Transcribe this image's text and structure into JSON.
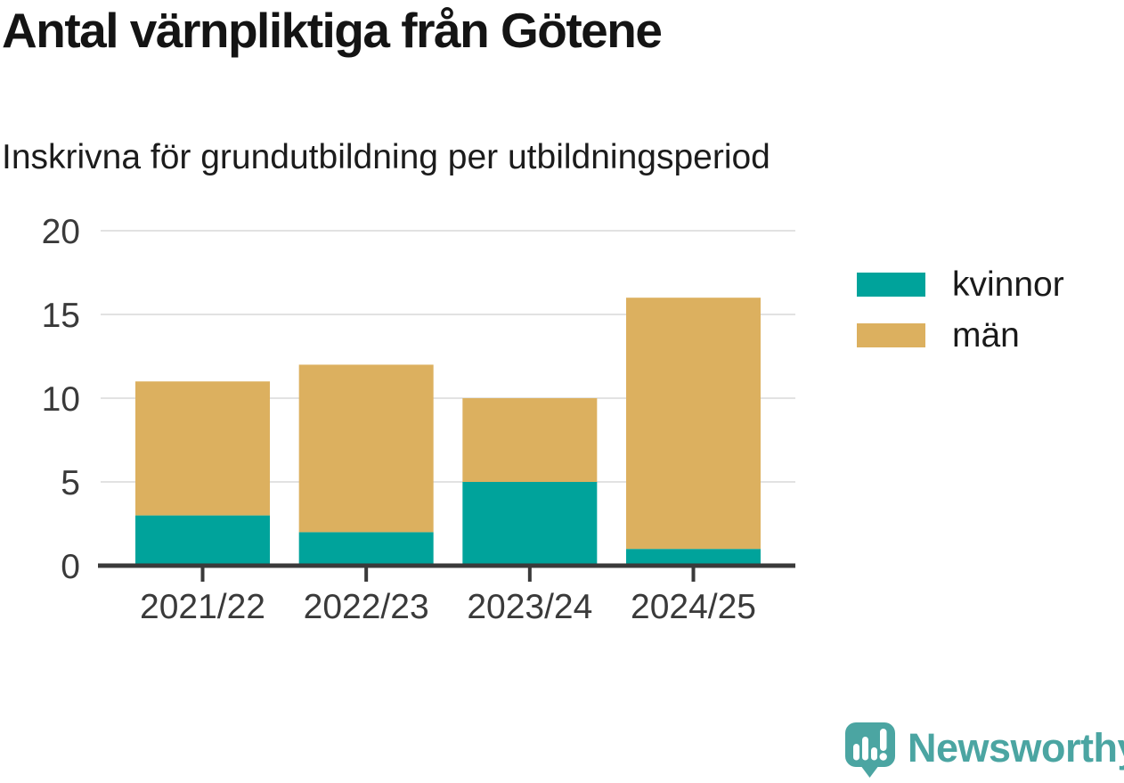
{
  "chart_data": {
    "type": "bar",
    "stacked": true,
    "title": "Antal värnpliktiga från Götene",
    "subtitle": "Inskrivna för grundutbildning per utbildningsperiod",
    "categories": [
      "2021/22",
      "2022/23",
      "2023/24",
      "2024/25"
    ],
    "series": [
      {
        "name": "kvinnor",
        "color": "#00a39b",
        "values": [
          3,
          2,
          5,
          1
        ]
      },
      {
        "name": "män",
        "color": "#dcb05f",
        "values": [
          8,
          10,
          5,
          15
        ]
      }
    ],
    "xlabel": "",
    "ylabel": "",
    "ylim": [
      0,
      20
    ],
    "yticks": [
      0,
      5,
      10,
      15,
      20
    ],
    "grid": true,
    "grid_color": "#e2e2e2",
    "axis_color": "#3a3a3a",
    "tick_label_color": "#3a3a3a",
    "legend_position": "right"
  },
  "footer": {
    "brand": "Newsworthy",
    "brand_color": "#4ba5a2"
  }
}
